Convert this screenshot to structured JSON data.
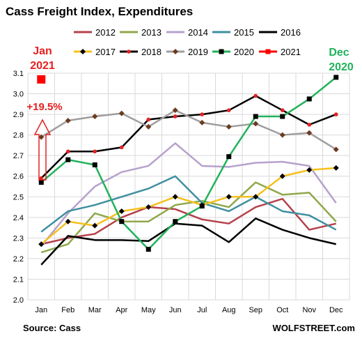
{
  "chart_data": {
    "type": "line",
    "title": "Cass Freight Index, Expenditures",
    "source": "Source: Cass",
    "watermark": "WOLFSTREET.com",
    "xlabel": "",
    "ylabel": "",
    "categories": [
      "Jan",
      "Feb",
      "Mar",
      "Apr",
      "May",
      "Jun",
      "Jul",
      "Aug",
      "Sep",
      "Oct",
      "Nov",
      "Dec"
    ],
    "ylim": [
      2.0,
      3.1
    ],
    "yticks": [
      "2.0",
      "2.1",
      "2.2",
      "2.3",
      "2.4",
      "2.5",
      "2.6",
      "2.7",
      "2.8",
      "2.9",
      "3.0",
      "3.1"
    ],
    "grid": true,
    "legend_position": "top",
    "series": [
      {
        "name": "2012",
        "color": "#b5414b",
        "marker": "none",
        "width": 2.5,
        "values": [
          2.27,
          2.3,
          2.32,
          2.4,
          2.45,
          2.44,
          2.39,
          2.37,
          2.45,
          2.49,
          2.34,
          2.37
        ]
      },
      {
        "name": "2013",
        "color": "#8fa84a",
        "marker": "none",
        "width": 2.5,
        "values": [
          2.23,
          2.27,
          2.42,
          2.38,
          2.38,
          2.46,
          2.48,
          2.45,
          2.57,
          2.51,
          2.52,
          2.38
        ]
      },
      {
        "name": "2014",
        "color": "#b6a1cc",
        "marker": "none",
        "width": 2.5,
        "values": [
          2.26,
          2.42,
          2.55,
          2.62,
          2.65,
          2.76,
          2.65,
          2.645,
          2.665,
          2.67,
          2.65,
          2.47
        ]
      },
      {
        "name": "2015",
        "color": "#3f8fa0",
        "marker": "none",
        "width": 2.5,
        "values": [
          2.33,
          2.43,
          2.46,
          2.5,
          2.54,
          2.6,
          2.47,
          2.43,
          2.5,
          2.43,
          2.41,
          2.34
        ]
      },
      {
        "name": "2016",
        "color": "#000000",
        "marker": "none",
        "width": 2.5,
        "values": [
          2.17,
          2.31,
          2.29,
          2.29,
          2.285,
          2.37,
          2.36,
          2.28,
          2.395,
          2.34,
          2.3,
          2.27
        ]
      },
      {
        "name": "2017",
        "color": "#f5c01e",
        "marker": "diamond",
        "markerColor": "#000000",
        "width": 2.5,
        "values": [
          2.27,
          2.38,
          2.36,
          2.43,
          2.45,
          2.5,
          2.46,
          2.5,
          2.5,
          2.6,
          2.63,
          2.64
        ]
      },
      {
        "name": "2018",
        "color": "#000000",
        "marker": "dot",
        "markerColor": "#e52020",
        "width": 2.5,
        "values": [
          2.59,
          2.72,
          2.72,
          2.74,
          2.875,
          2.89,
          2.9,
          2.92,
          2.99,
          2.92,
          2.85,
          2.9
        ]
      },
      {
        "name": "2019",
        "color": "#9e9e9e",
        "marker": "diamond",
        "markerColor": "#6b3a1f",
        "width": 2.5,
        "values": [
          2.79,
          2.87,
          2.89,
          2.905,
          2.84,
          2.92,
          2.86,
          2.84,
          2.855,
          2.8,
          2.81,
          2.73
        ]
      },
      {
        "name": "2020",
        "color": "#20b25a",
        "marker": "square",
        "markerColor": "#000000",
        "width": 2.5,
        "values": [
          2.57,
          2.68,
          2.655,
          2.38,
          2.245,
          2.38,
          2.455,
          2.695,
          2.89,
          2.89,
          2.975,
          3.08
        ]
      },
      {
        "name": "2021",
        "color": "#ff0000",
        "marker": "bigsquare",
        "markerColor": "#ff0000",
        "width": 2.5,
        "values": [
          3.07,
          null,
          null,
          null,
          null,
          null,
          null,
          null,
          null,
          null,
          null,
          null
        ]
      }
    ],
    "annotations": {
      "jan_line1": "Jan",
      "jan_line2": "2021",
      "change": "+19.5%",
      "dec_line1": "Dec",
      "dec_line2": "2020"
    }
  },
  "colors": {
    "annotation_red": "#e52020",
    "annotation_green": "#20b25a",
    "grid": "#d9d9d9"
  }
}
